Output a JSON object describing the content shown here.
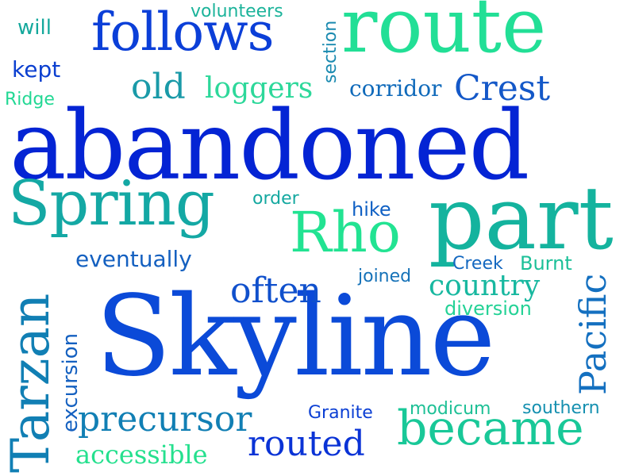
{
  "colors": {
    "background": "#ffffff",
    "palette": [
      "#0424d4",
      "#0b3fd8",
      "#1458c8",
      "#117fb4",
      "#10a8a0",
      "#17c894",
      "#22e392",
      "#2dd89a"
    ]
  },
  "words": {
    "abandoned": "abandoned",
    "skyline": "Skyline",
    "route": "route",
    "part": "part",
    "follows": "follows",
    "spring": "Spring",
    "rho": "Rho",
    "became": "became",
    "crest": "Crest",
    "old": "old",
    "loggers": "loggers",
    "corridor": "corridor",
    "often": "often",
    "precursor": "precursor",
    "routed": "routed",
    "accessible": "accessible",
    "country": "country",
    "diversion": "diversion",
    "volunteers": "volunteers",
    "will": "will",
    "kept": "kept",
    "ridge": "Ridge",
    "order": "order",
    "hike": "hike",
    "eventually": "eventually",
    "joined": "joined",
    "creek": "Creek",
    "burnt": "Burnt",
    "granite": "Granite",
    "modicum": "modicum",
    "southern": "southern",
    "section": "section",
    "tarzan": "Tarzan",
    "excursion": "excursion",
    "pacific": "Pacific"
  }
}
